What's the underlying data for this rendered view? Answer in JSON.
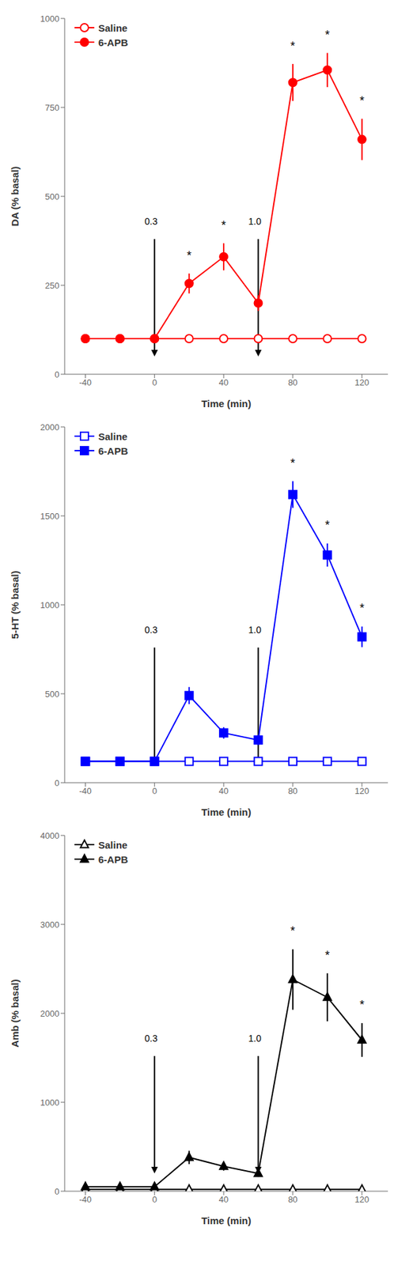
{
  "chart_data": [
    {
      "type": "line",
      "x_label": "Time (min)",
      "y_label": "DA (% basal)",
      "x": [
        -40,
        -20,
        0,
        20,
        40,
        60,
        80,
        100,
        120
      ],
      "xlim": [
        -52,
        135
      ],
      "xticks": [
        -40,
        0,
        40,
        80,
        120
      ],
      "ylim": [
        0,
        1000
      ],
      "yticks": [
        0,
        250,
        500,
        750,
        1000
      ],
      "grid": false,
      "legend": "upper left",
      "series": [
        {
          "name": "Saline",
          "color": "#FF0000",
          "marker": "open_circle",
          "values": [
            100,
            100,
            100,
            100,
            100,
            100,
            100,
            100,
            100
          ],
          "errors": [
            8,
            8,
            8,
            8,
            8,
            8,
            8,
            8,
            8
          ]
        },
        {
          "name": "6-APB",
          "color": "#FF0000",
          "marker": "circle",
          "values": [
            100,
            100,
            100,
            255,
            330,
            200,
            820,
            855,
            660
          ],
          "errors": [
            8,
            8,
            8,
            28,
            38,
            22,
            52,
            48,
            58
          ]
        }
      ],
      "significance": {
        "series": "6-APB",
        "text": "*",
        "x": [
          20,
          40,
          80,
          100,
          120
        ]
      },
      "annotations": [
        {
          "text": "0.3",
          "x": -2,
          "arrow_x": 0
        },
        {
          "text": "1.0",
          "x": 58,
          "arrow_x": 60
        }
      ]
    },
    {
      "type": "line",
      "x_label": "Time (min)",
      "y_label": "5-HT (% basal)",
      "x": [
        -40,
        -20,
        0,
        20,
        40,
        60,
        80,
        100,
        120
      ],
      "xlim": [
        -52,
        135
      ],
      "xticks": [
        -40,
        0,
        40,
        80,
        120
      ],
      "ylim": [
        0,
        2000
      ],
      "yticks": [
        0,
        500,
        1000,
        1500,
        2000
      ],
      "grid": false,
      "legend": "upper left",
      "series": [
        {
          "name": "Saline",
          "color": "#0000FF",
          "marker": "open_square",
          "values": [
            120,
            120,
            120,
            120,
            120,
            120,
            120,
            120,
            120
          ],
          "errors": [
            15,
            15,
            15,
            15,
            15,
            15,
            15,
            15,
            15
          ]
        },
        {
          "name": "6-APB",
          "color": "#0000FF",
          "marker": "square",
          "values": [
            120,
            120,
            120,
            490,
            280,
            240,
            1620,
            1280,
            820
          ],
          "errors": [
            15,
            15,
            15,
            48,
            32,
            28,
            75,
            65,
            58
          ]
        }
      ],
      "significance": {
        "series": "6-APB",
        "text": "*",
        "x": [
          80,
          100,
          120
        ]
      },
      "annotations": [
        {
          "text": "0.3",
          "x": -2,
          "arrow_x": 0
        },
        {
          "text": "1.0",
          "x": 58,
          "arrow_x": 60
        }
      ]
    },
    {
      "type": "line",
      "x_label": "Time (min)",
      "y_label": "Amb (% basal)",
      "x": [
        -40,
        -20,
        0,
        20,
        40,
        60,
        80,
        100,
        120
      ],
      "xlim": [
        -52,
        135
      ],
      "xticks": [
        -40,
        0,
        40,
        80,
        120
      ],
      "ylim": [
        0,
        4000
      ],
      "yticks": [
        0,
        1000,
        2000,
        3000,
        4000
      ],
      "grid": false,
      "legend": "upper left",
      "series": [
        {
          "name": "Saline",
          "color": "#000000",
          "marker": "open_triangle",
          "values": [
            20,
            20,
            20,
            20,
            20,
            20,
            20,
            20,
            20
          ],
          "errors": [
            8,
            8,
            8,
            8,
            8,
            8,
            8,
            8,
            8
          ]
        },
        {
          "name": "6-APB",
          "color": "#000000",
          "marker": "triangle",
          "values": [
            50,
            50,
            50,
            380,
            280,
            200,
            2380,
            2180,
            1700
          ],
          "errors": [
            12,
            12,
            12,
            75,
            48,
            38,
            340,
            270,
            190
          ]
        }
      ],
      "significance": {
        "series": "6-APB",
        "text": "*",
        "x": [
          80,
          100,
          120
        ]
      },
      "annotations": [
        {
          "text": "0.3",
          "x": -2,
          "arrow_x": 0
        },
        {
          "text": "1.0",
          "x": 58,
          "arrow_x": 60
        }
      ]
    }
  ]
}
